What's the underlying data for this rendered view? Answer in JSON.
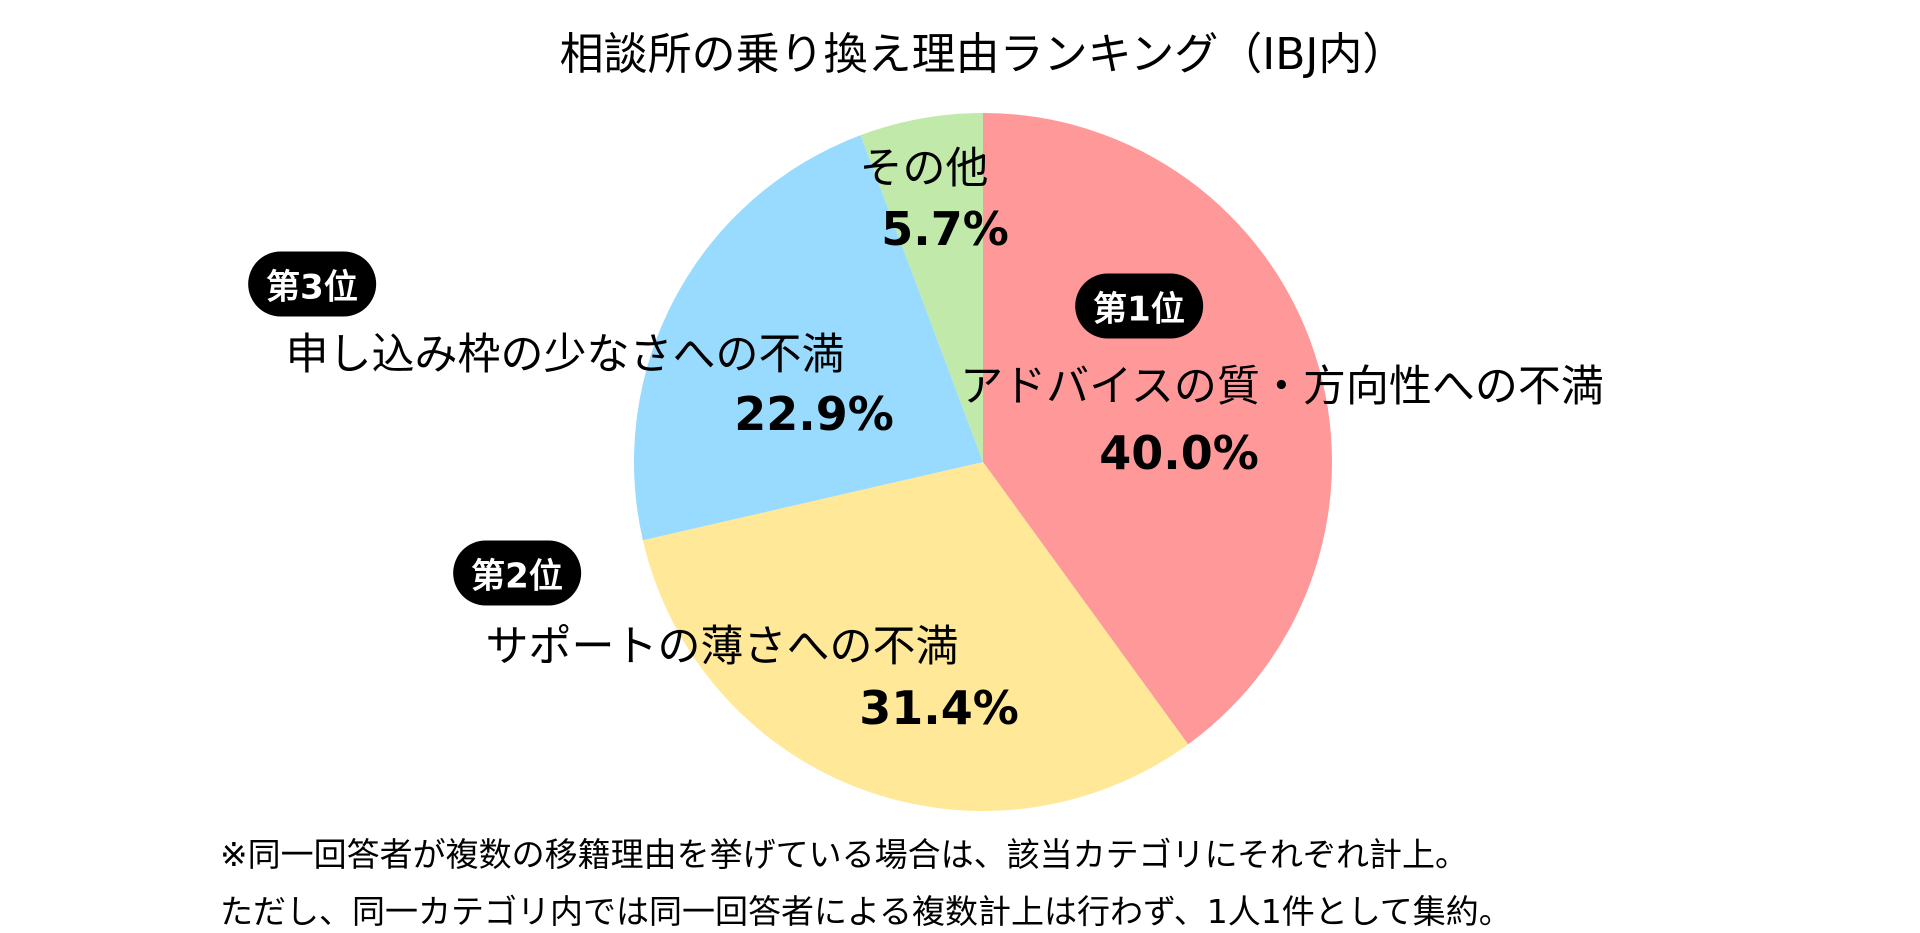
{
  "chart_data": {
    "type": "pie",
    "title": "相談所の乗り換え理由ランキング（IBJ内）",
    "slices": [
      {
        "rank": "第1位",
        "label": "アドバイスの質・方向性への不満",
        "value": 40.0,
        "value_label": "40.0%",
        "color": "#FF9999"
      },
      {
        "rank": "第2位",
        "label": "サポートの薄さへの不満",
        "value": 31.4,
        "value_label": "31.4%",
        "color": "#FFE999"
      },
      {
        "rank": "第3位",
        "label": "申し込み枠の少なさへの不満",
        "value": 22.9,
        "value_label": "22.9%",
        "color": "#99DAFF"
      },
      {
        "rank": "",
        "label": "その他",
        "value": 5.7,
        "value_label": "5.7%",
        "color": "#C1EAAA"
      }
    ],
    "start": "top",
    "direction": "clockwise"
  },
  "footnote": [
    "※同一回答者が複数の移籍理由を挙げている場合は、該当カテゴリにそれぞれ計上。",
    "ただし、同一カテゴリ内では同一回答者による複数計上は行わず、1人1件として集約。"
  ]
}
